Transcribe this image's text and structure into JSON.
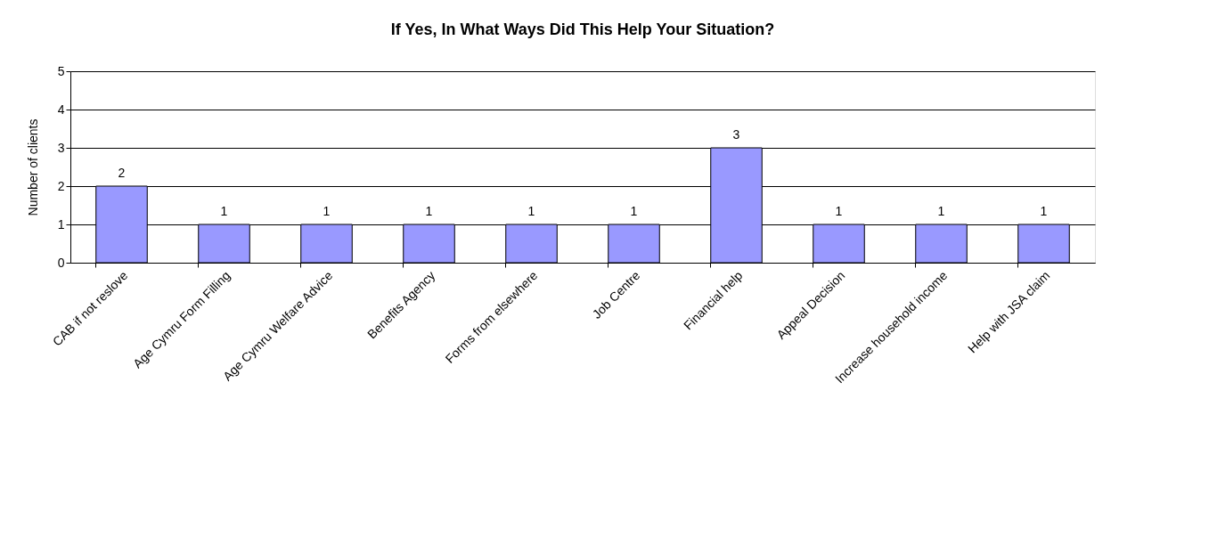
{
  "chart_data": {
    "type": "bar",
    "title": "If Yes, In What Ways Did This Help Your Situation?",
    "ylabel": "Number of clients",
    "categories": [
      "CAB if not reslove",
      "Age Cymru Form Filling",
      "Age Cymru Welfare Advice",
      "Benefits Agency",
      "Forms from elsewhere",
      "Job Centre",
      "Financial help",
      "Appeal Decision",
      "Increase household income",
      "Help with JSA claim"
    ],
    "values": [
      2,
      1,
      1,
      1,
      1,
      1,
      3,
      1,
      1,
      1
    ],
    "color": "#9999ff",
    "ylim": [
      0,
      5
    ],
    "yticks": [
      0,
      1,
      2,
      3,
      4,
      5
    ],
    "grid": "y",
    "data_labels": true
  }
}
